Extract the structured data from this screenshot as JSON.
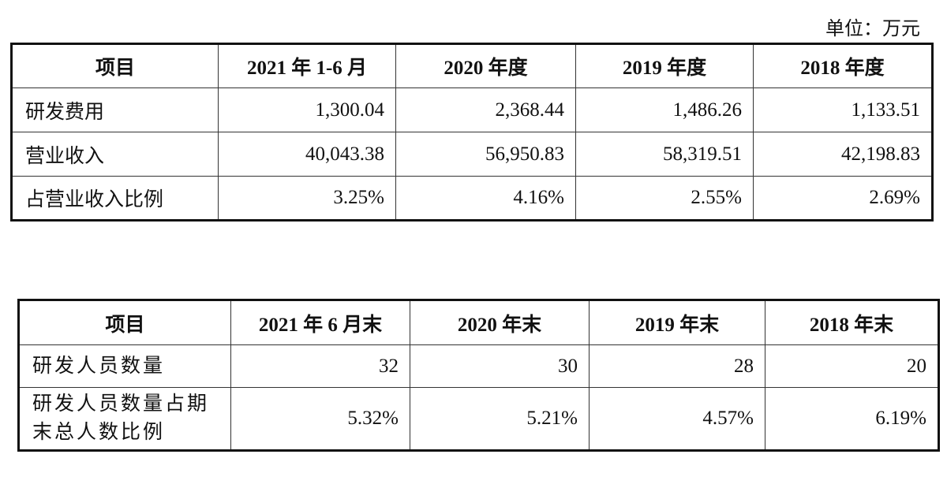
{
  "unit_label": "单位：万元",
  "table1": {
    "headers": [
      "项目",
      "2021 年 1-6 月",
      "2020 年度",
      "2019 年度",
      "2018 年度"
    ],
    "rows": [
      {
        "label": "研发费用",
        "values": [
          "1,300.04",
          "2,368.44",
          "1,486.26",
          "1,133.51"
        ]
      },
      {
        "label": "营业收入",
        "values": [
          "40,043.38",
          "56,950.83",
          "58,319.51",
          "42,198.83"
        ]
      },
      {
        "label": "占营业收入比例",
        "values": [
          "3.25%",
          "4.16%",
          "2.55%",
          "2.69%"
        ]
      }
    ]
  },
  "table2": {
    "headers": [
      "项目",
      "2021 年 6 月末",
      "2020 年末",
      "2019 年末",
      "2018 年末"
    ],
    "rows": [
      {
        "label": "研发人员数量",
        "values": [
          "32",
          "30",
          "28",
          "20"
        ]
      },
      {
        "label": "研发人员数量占期末总人数比例",
        "values": [
          "5.32%",
          "5.21%",
          "4.57%",
          "6.19%"
        ]
      }
    ]
  }
}
